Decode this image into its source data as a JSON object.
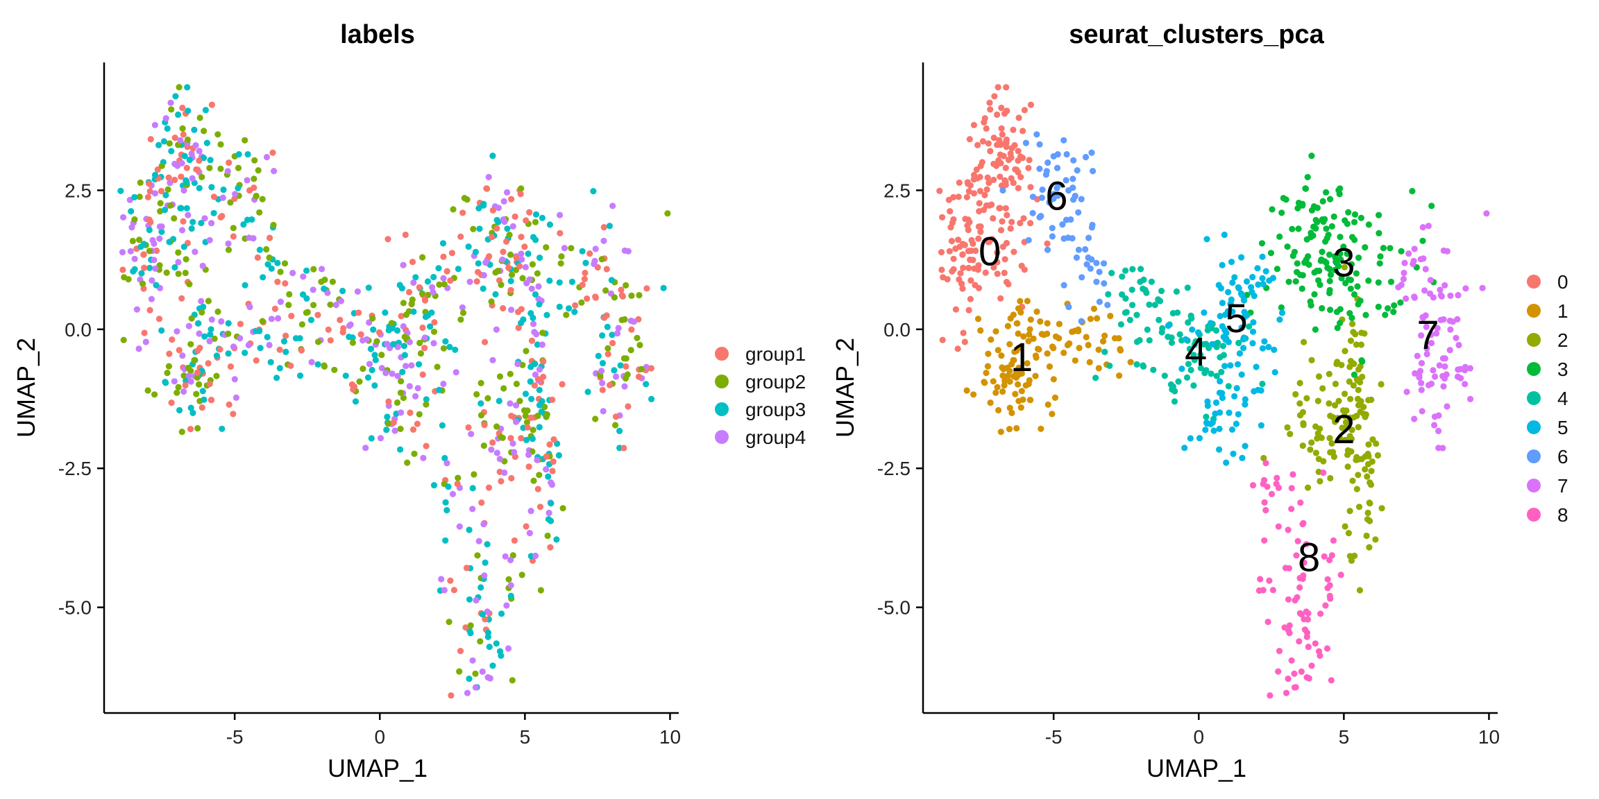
{
  "chart_data": [
    {
      "type": "scatter",
      "title": "labels",
      "xlabel": "UMAP_1",
      "ylabel": "UMAP_2",
      "xlim": [
        -9.5,
        10.3
      ],
      "ylim": [
        -6.9,
        4.8
      ],
      "xticks": [
        -5,
        0,
        5,
        10
      ],
      "xtick_labels": [
        "-5",
        "0",
        "5",
        "10"
      ],
      "yticks": [
        -5.0,
        -2.5,
        0.0,
        2.5
      ],
      "ytick_labels": [
        "-5.0",
        "-2.5",
        "0.0",
        "2.5"
      ],
      "grid": false,
      "legend_position": "right",
      "series": [
        {
          "name": "group1",
          "color": "#F8766D"
        },
        {
          "name": "group2",
          "color": "#7CAE00"
        },
        {
          "name": "group3",
          "color": "#00BFC4"
        },
        {
          "name": "group4",
          "color": "#C77CFF"
        }
      ]
    },
    {
      "type": "scatter",
      "title": "seurat_clusters_pca",
      "xlabel": "UMAP_1",
      "ylabel": "UMAP_2",
      "xlim": [
        -9.5,
        10.3
      ],
      "ylim": [
        -6.9,
        4.8
      ],
      "xticks": [
        -5,
        0,
        5,
        10
      ],
      "xtick_labels": [
        "-5",
        "0",
        "5",
        "10"
      ],
      "yticks": [
        -5.0,
        -2.5,
        0.0,
        2.5
      ],
      "ytick_labels": [
        "-5.0",
        "-2.5",
        "0.0",
        "2.5"
      ],
      "grid": false,
      "legend_position": "right",
      "series": [
        {
          "name": "0",
          "color": "#F8766D",
          "label_x": -7.2,
          "label_y": 1.4
        },
        {
          "name": "1",
          "color": "#D39200",
          "label_x": -6.1,
          "label_y": -0.5
        },
        {
          "name": "2",
          "color": "#93AA00",
          "label_x": 5.0,
          "label_y": -1.8
        },
        {
          "name": "3",
          "color": "#00BA38",
          "label_x": 5.0,
          "label_y": 1.2
        },
        {
          "name": "4",
          "color": "#00C19F",
          "label_x": -0.1,
          "label_y": -0.4
        },
        {
          "name": "5",
          "color": "#00B9E3",
          "label_x": 1.3,
          "label_y": 0.2
        },
        {
          "name": "6",
          "color": "#619CFF",
          "label_x": -4.9,
          "label_y": 2.4
        },
        {
          "name": "7",
          "color": "#DB72FB",
          "label_x": 7.9,
          "label_y": -0.1
        },
        {
          "name": "8",
          "color": "#FF61C3",
          "label_x": 3.8,
          "label_y": -4.1
        }
      ]
    }
  ]
}
